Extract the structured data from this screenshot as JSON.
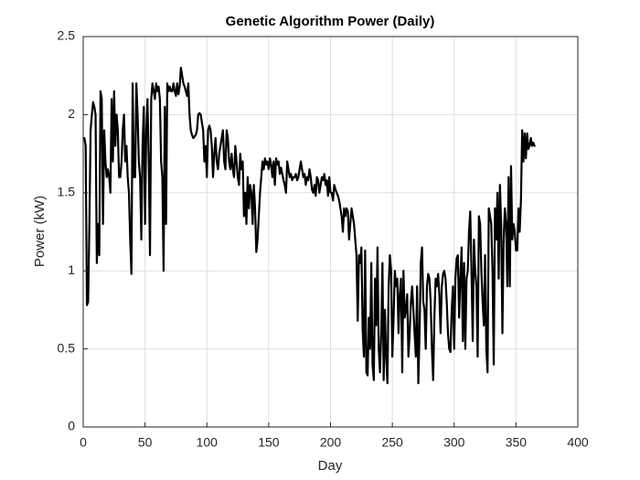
{
  "chart_data": {
    "type": "line",
    "title": "Genetic Algorithm Power (Daily)",
    "xlabel": "Day",
    "ylabel": "Power (kW)",
    "grid": true,
    "xlim": [
      0,
      400
    ],
    "xticks": [
      0,
      50,
      100,
      150,
      200,
      250,
      300,
      350,
      400
    ],
    "ylim": [
      0,
      2.5
    ],
    "yticks": [
      0,
      0.5,
      1,
      1.5,
      2,
      2.5
    ],
    "x": [
      1,
      2,
      3,
      4,
      5,
      6,
      7,
      8,
      9,
      10,
      11,
      12,
      13,
      14,
      15,
      16,
      17,
      18,
      19,
      20,
      21,
      22,
      23,
      24,
      25,
      26,
      27,
      28,
      29,
      30,
      31,
      32,
      33,
      34,
      35,
      36,
      37,
      38,
      39,
      40,
      41,
      42,
      43,
      44,
      45,
      46,
      47,
      48,
      49,
      50,
      51,
      52,
      53,
      54,
      55,
      56,
      57,
      58,
      59,
      60,
      61,
      62,
      63,
      64,
      65,
      66,
      67,
      68,
      69,
      70,
      71,
      72,
      73,
      74,
      75,
      76,
      77,
      78,
      79,
      80,
      81,
      82,
      83,
      84,
      85,
      86,
      87,
      88,
      89,
      90,
      91,
      92,
      93,
      94,
      95,
      96,
      97,
      98,
      99,
      100,
      101,
      102,
      103,
      104,
      105,
      106,
      107,
      108,
      109,
      110,
      111,
      112,
      113,
      114,
      115,
      116,
      117,
      118,
      119,
      120,
      121,
      122,
      123,
      124,
      125,
      126,
      127,
      128,
      129,
      130,
      131,
      132,
      133,
      134,
      135,
      136,
      137,
      138,
      139,
      140,
      141,
      142,
      143,
      144,
      145,
      146,
      147,
      148,
      149,
      150,
      151,
      152,
      153,
      154,
      155,
      156,
      157,
      158,
      159,
      160,
      161,
      162,
      163,
      164,
      165,
      166,
      167,
      168,
      169,
      170,
      171,
      172,
      173,
      174,
      175,
      176,
      177,
      178,
      179,
      180,
      181,
      182,
      183,
      184,
      185,
      186,
      187,
      188,
      189,
      190,
      191,
      192,
      193,
      194,
      195,
      196,
      197,
      198,
      199,
      200,
      201,
      202,
      203,
      204,
      205,
      206,
      207,
      208,
      209,
      210,
      211,
      212,
      213,
      214,
      215,
      216,
      217,
      218,
      219,
      220,
      221,
      222,
      223,
      224,
      225,
      226,
      227,
      228,
      229,
      230,
      231,
      232,
      233,
      234,
      235,
      236,
      237,
      238,
      239,
      240,
      241,
      242,
      243,
      244,
      245,
      246,
      247,
      248,
      249,
      250,
      251,
      252,
      253,
      254,
      255,
      256,
      257,
      258,
      259,
      260,
      261,
      262,
      263,
      264,
      265,
      266,
      267,
      268,
      269,
      270,
      271,
      272,
      273,
      274,
      275,
      276,
      277,
      278,
      279,
      280,
      281,
      282,
      283,
      284,
      285,
      286,
      287,
      288,
      289,
      290,
      291,
      292,
      293,
      294,
      295,
      296,
      297,
      298,
      299,
      300,
      301,
      302,
      303,
      304,
      305,
      306,
      307,
      308,
      309,
      310,
      311,
      312,
      313,
      314,
      315,
      316,
      317,
      318,
      319,
      320,
      321,
      322,
      323,
      324,
      325,
      326,
      327,
      328,
      329,
      330,
      331,
      332,
      333,
      334,
      335,
      336,
      337,
      338,
      339,
      340,
      341,
      342,
      343,
      344,
      345,
      346,
      347,
      348,
      349,
      350,
      351,
      352,
      353,
      354,
      355,
      356,
      357,
      358,
      359,
      360,
      361,
      362,
      363,
      364,
      365
    ],
    "series": [
      {
        "color": "#000000",
        "values": [
          1.85,
          1.8,
          0.78,
          0.8,
          1.3,
          1.9,
          2.0,
          2.08,
          2.05,
          2.0,
          1.05,
          1.3,
          1.1,
          2.15,
          2.1,
          1.3,
          1.9,
          1.7,
          1.6,
          1.65,
          1.6,
          1.5,
          2.1,
          1.7,
          2.15,
          1.8,
          2.0,
          1.9,
          1.6,
          1.6,
          1.7,
          1.9,
          2.0,
          1.7,
          1.8,
          1.6,
          1.5,
          1.2,
          0.98,
          2.2,
          1.6,
          1.6,
          2.2,
          2.0,
          1.7,
          1.6,
          1.2,
          1.8,
          2.05,
          1.3,
          1.9,
          2.1,
          1.7,
          1.1,
          2.1,
          2.2,
          2.15,
          2.1,
          2.2,
          2.15,
          2.18,
          2.1,
          1.7,
          1.6,
          1.0,
          2.05,
          1.3,
          2.2,
          2.15,
          2.18,
          2.15,
          2.15,
          2.2,
          2.15,
          2.12,
          2.2,
          2.13,
          2.18,
          2.3,
          2.25,
          2.2,
          2.18,
          2.15,
          2.12,
          2.2,
          2.0,
          1.9,
          1.87,
          1.85,
          1.86,
          1.87,
          1.9,
          2.0,
          2.01,
          2.0,
          1.95,
          1.9,
          1.7,
          1.8,
          1.6,
          1.9,
          1.93,
          1.9,
          1.8,
          1.6,
          1.75,
          1.85,
          1.7,
          1.65,
          1.75,
          1.8,
          1.85,
          1.9,
          1.7,
          1.65,
          1.9,
          1.85,
          1.7,
          1.65,
          1.75,
          1.65,
          1.6,
          1.8,
          1.7,
          1.6,
          1.55,
          1.75,
          1.65,
          1.7,
          1.35,
          1.5,
          1.3,
          1.6,
          1.4,
          1.55,
          1.5,
          1.3,
          1.55,
          1.4,
          1.12,
          1.2,
          1.35,
          1.5,
          1.6,
          1.7,
          1.65,
          1.72,
          1.68,
          1.7,
          1.65,
          1.72,
          1.68,
          1.6,
          1.7,
          1.55,
          1.72,
          1.68,
          1.7,
          1.62,
          1.66,
          1.62,
          1.58,
          1.55,
          1.5,
          1.7,
          1.65,
          1.6,
          1.62,
          1.58,
          1.6,
          1.6,
          1.62,
          1.58,
          1.6,
          1.65,
          1.7,
          1.65,
          1.6,
          1.62,
          1.55,
          1.6,
          1.58,
          1.65,
          1.6,
          1.52,
          1.5,
          1.55,
          1.48,
          1.6,
          1.58,
          1.5,
          1.55,
          1.6,
          1.58,
          1.62,
          1.55,
          1.58,
          1.48,
          1.6,
          1.5,
          1.5,
          1.45,
          1.55,
          1.52,
          1.5,
          1.48,
          1.45,
          1.4,
          1.35,
          1.25,
          1.4,
          1.35,
          1.4,
          1.38,
          1.2,
          1.3,
          1.4,
          1.35,
          1.3,
          1.2,
          1.1,
          0.68,
          1.1,
          1.05,
          1.15,
          0.62,
          0.45,
          1.13,
          0.35,
          0.33,
          0.7,
          0.5,
          1.05,
          0.4,
          0.3,
          0.95,
          0.65,
          1.15,
          0.5,
          0.35,
          0.6,
          1.05,
          0.3,
          0.75,
          0.45,
          0.28,
          0.9,
          1.1,
          1.0,
          0.45,
          0.7,
          1.0,
          0.9,
          0.95,
          0.6,
          0.85,
          0.95,
          0.35,
          1.0,
          0.7,
          0.75,
          0.85,
          0.45,
          0.6,
          0.8,
          0.9,
          0.75,
          0.6,
          0.45,
          0.9,
          0.28,
          0.6,
          1.05,
          1.15,
          0.8,
          0.75,
          0.5,
          0.9,
          0.98,
          0.95,
          0.8,
          0.5,
          0.3,
          0.7,
          0.95,
          0.9,
          0.98,
          0.85,
          0.6,
          0.9,
          0.98,
          1.0,
          0.95,
          0.8,
          0.6,
          0.5,
          0.48,
          0.75,
          0.9,
          0.5,
          0.95,
          1.08,
          1.1,
          0.7,
          0.95,
          1.15,
          0.55,
          1.05,
          0.5,
          0.95,
          1.0,
          1.25,
          1.38,
          1.0,
          0.55,
          1.2,
          1.0,
          0.9,
          0.45,
          1.35,
          1.3,
          1.0,
          0.8,
          0.65,
          1.1,
          0.5,
          0.35,
          1.4,
          1.35,
          1.3,
          1.0,
          0.4,
          1.4,
          1.2,
          1.5,
          0.95,
          1.55,
          1.3,
          0.6,
          1.2,
          1.4,
          1.3,
          0.9,
          1.6,
          0.9,
          1.67,
          1.2,
          1.3,
          1.25,
          1.13,
          1.13,
          1.4,
          1.25,
          1.45,
          1.9,
          1.7,
          1.88,
          1.72,
          1.88,
          1.78,
          1.8,
          1.85,
          1.8,
          1.82,
          1.8
        ]
      }
    ]
  }
}
